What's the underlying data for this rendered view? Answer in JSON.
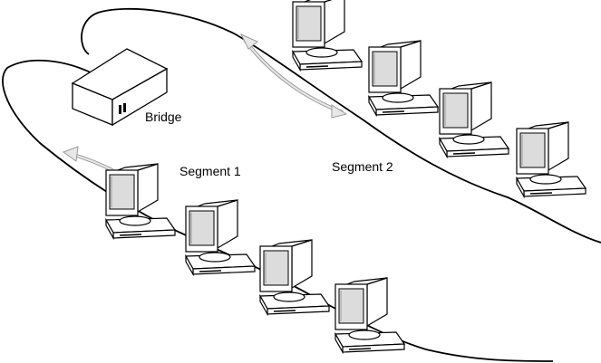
{
  "labels": {
    "bridge": "Bridge",
    "segment1": "Segment 1",
    "segment2": "Segment 2"
  },
  "colors": {
    "ink": "#000000",
    "arrow_fill": "#e8e8e8",
    "arrow_stroke": "#9a9a9a",
    "screen_fill": "#dcdcdc",
    "body_fill": "#ffffff"
  },
  "icons": {
    "computer": "computer-icon",
    "bridge": "bridge-device-icon",
    "arrow": "traffic-arrow-icon"
  }
}
